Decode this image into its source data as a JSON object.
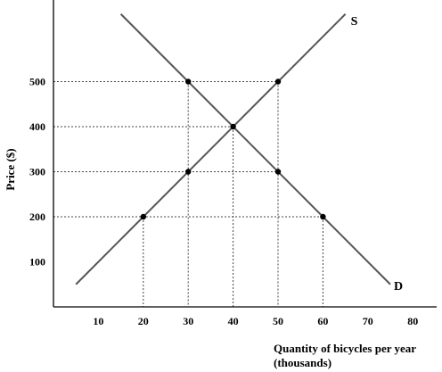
{
  "chart_data": {
    "type": "line",
    "xlabel": "Quantity of bicycles per year",
    "xlabel_line2": "(thousands)",
    "ylabel": "Price ($)",
    "xlim": [
      0,
      80
    ],
    "ylim": [
      0,
      600
    ],
    "x_ticks": [
      10,
      20,
      30,
      40,
      50,
      60,
      70,
      80
    ],
    "y_ticks": [
      100,
      200,
      300,
      400,
      500
    ],
    "grid": false,
    "series": [
      {
        "name": "S",
        "x": [
          5,
          65
        ],
        "y": [
          50,
          650
        ]
      },
      {
        "name": "D",
        "x": [
          15,
          75
        ],
        "y": [
          650,
          50
        ]
      }
    ],
    "points": [
      {
        "x": 20,
        "y": 200
      },
      {
        "x": 30,
        "y": 300
      },
      {
        "x": 40,
        "y": 400
      },
      {
        "x": 50,
        "y": 500
      },
      {
        "x": 30,
        "y": 500
      },
      {
        "x": 50,
        "y": 300
      },
      {
        "x": 60,
        "y": 200
      }
    ],
    "guides_from_y_axis": [
      {
        "y": 500,
        "to_x": 50
      },
      {
        "y": 400,
        "to_x": 40
      },
      {
        "y": 300,
        "to_x": 50
      },
      {
        "y": 200,
        "to_x": 60
      }
    ],
    "guides_to_x_axis": [
      {
        "x": 20,
        "from_y": 200
      },
      {
        "x": 30,
        "from_y": 500
      },
      {
        "x": 40,
        "from_y": 400
      },
      {
        "x": 50,
        "from_y": 500
      },
      {
        "x": 60,
        "from_y": 200
      }
    ]
  }
}
